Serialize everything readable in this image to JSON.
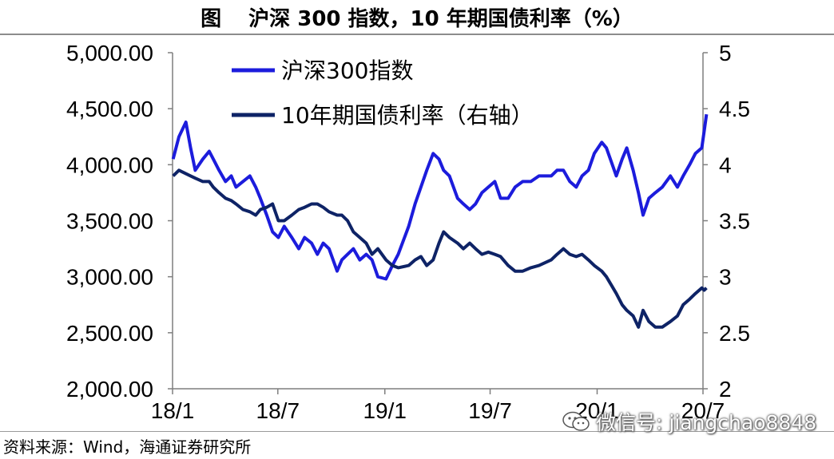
{
  "title": {
    "label": "图",
    "text": "沪深 300 指数，10 年期国债利率（%）"
  },
  "source": "资料来源：Wind，海通证券研究所",
  "watermark": {
    "icon": "wechat-icon",
    "text": "微信号: jiangchao8848"
  },
  "chart_data": {
    "type": "line",
    "x_ticks": [
      "18/1",
      "18/7",
      "19/1",
      "19/7",
      "20/1",
      "20/7"
    ],
    "xlim": [
      "18/1",
      "20/7"
    ],
    "y_left": {
      "ylim": [
        2000,
        5000
      ],
      "ticks": [
        "5,000.00",
        "4,500.00",
        "4,000.00",
        "3,500.00",
        "3,000.00",
        "2,500.00",
        "2,000.00"
      ]
    },
    "y_right": {
      "ylim": [
        2,
        5
      ],
      "ticks": [
        "5",
        "4.5",
        "4",
        "3.5",
        "3",
        "2.5",
        "2"
      ]
    },
    "legend": {
      "placement": "top-left"
    },
    "grid": false,
    "series": [
      {
        "name": "沪深300指数",
        "axis": "left",
        "color": "#1c1cdc",
        "x": [
          "18/01/02",
          "18/01/12",
          "18/01/24",
          "18/02/01",
          "18/02/09",
          "18/02/22",
          "18/03/05",
          "18/03/12",
          "18/03/22",
          "18/04/02",
          "18/04/12",
          "18/04/20",
          "18/05/02",
          "18/05/14",
          "18/05/24",
          "18/06/01",
          "18/06/12",
          "18/06/22",
          "18/07/02",
          "18/07/12",
          "18/07/25",
          "18/08/06",
          "18/08/16",
          "18/08/28",
          "18/09/07",
          "18/09/17",
          "18/09/27",
          "18/10/11",
          "18/10/19",
          "18/10/29",
          "18/11/08",
          "18/11/19",
          "18/11/30",
          "18/12/10",
          "18/12/20",
          "19/01/03",
          "19/01/14",
          "19/01/24",
          "19/02/11",
          "19/02/22",
          "19/03/04",
          "19/03/14",
          "19/03/25",
          "19/04/04",
          "19/04/12",
          "19/04/22",
          "19/05/06",
          "19/05/16",
          "19/05/27",
          "19/06/06",
          "19/06/17",
          "19/06/28",
          "19/07/09",
          "19/07/19",
          "19/08/01",
          "19/08/13",
          "19/08/26",
          "19/09/09",
          "19/09/23",
          "19/10/14",
          "19/10/24",
          "19/11/04",
          "19/11/15",
          "19/11/26",
          "19/12/06",
          "19/12/17",
          "19/12/27",
          "20/01/09",
          "20/01/17",
          "20/02/03",
          "20/02/13",
          "20/02/21",
          "20/03/03",
          "20/03/12",
          "20/03/20",
          "20/03/30",
          "20/04/10",
          "20/04/22",
          "20/05/06",
          "20/05/18",
          "20/05/28",
          "20/06/08",
          "20/06/18",
          "20/06/29",
          "20/07/03",
          "20/07/07"
        ],
        "values": [
          4050,
          4250,
          4380,
          4150,
          3950,
          4050,
          4120,
          4050,
          3950,
          3850,
          3900,
          3800,
          3850,
          3900,
          3800,
          3700,
          3550,
          3400,
          3350,
          3450,
          3350,
          3250,
          3350,
          3300,
          3200,
          3300,
          3250,
          3050,
          3150,
          3200,
          3250,
          3150,
          3200,
          3150,
          3000,
          2980,
          3100,
          3200,
          3450,
          3650,
          3800,
          3950,
          4100,
          4050,
          3950,
          3900,
          3700,
          3650,
          3600,
          3650,
          3750,
          3800,
          3850,
          3700,
          3700,
          3800,
          3850,
          3850,
          3900,
          3900,
          3950,
          3950,
          3850,
          3800,
          3900,
          3950,
          4100,
          4200,
          4150,
          3900,
          4050,
          4150,
          3950,
          3750,
          3550,
          3700,
          3750,
          3800,
          3900,
          3800,
          3900,
          4000,
          4100,
          4150,
          4300,
          4450
        ]
      },
      {
        "name": "10年期国债利率（右轴）",
        "axis": "right",
        "color": "#0e2366",
        "x": [
          "18/01/02",
          "18/01/12",
          "18/01/24",
          "18/02/01",
          "18/02/09",
          "18/02/22",
          "18/03/05",
          "18/03/12",
          "18/03/22",
          "18/04/02",
          "18/04/12",
          "18/04/20",
          "18/05/02",
          "18/05/14",
          "18/05/24",
          "18/06/01",
          "18/06/12",
          "18/06/22",
          "18/07/02",
          "18/07/12",
          "18/07/25",
          "18/08/06",
          "18/08/16",
          "18/08/28",
          "18/09/07",
          "18/09/17",
          "18/09/27",
          "18/10/11",
          "18/10/19",
          "18/10/29",
          "18/11/08",
          "18/11/19",
          "18/11/30",
          "18/12/10",
          "18/12/20",
          "19/01/03",
          "19/01/14",
          "19/01/24",
          "19/02/11",
          "19/02/22",
          "19/03/04",
          "19/03/14",
          "19/03/25",
          "19/04/04",
          "19/04/12",
          "19/04/22",
          "19/05/06",
          "19/05/16",
          "19/05/27",
          "19/06/06",
          "19/06/17",
          "19/06/28",
          "19/07/09",
          "19/07/19",
          "19/08/01",
          "19/08/13",
          "19/08/26",
          "19/09/09",
          "19/09/23",
          "19/10/14",
          "19/10/24",
          "19/11/04",
          "19/11/15",
          "19/11/26",
          "19/12/06",
          "19/12/17",
          "19/12/27",
          "20/01/09",
          "20/01/17",
          "20/02/03",
          "20/02/13",
          "20/02/21",
          "20/03/03",
          "20/03/12",
          "20/03/20",
          "20/03/30",
          "20/04/10",
          "20/04/22",
          "20/05/06",
          "20/05/18",
          "20/05/28",
          "20/06/08",
          "20/06/18",
          "20/06/29",
          "20/07/03",
          "20/07/07"
        ],
        "values": [
          3.9,
          3.95,
          3.92,
          3.9,
          3.88,
          3.85,
          3.85,
          3.8,
          3.75,
          3.7,
          3.68,
          3.65,
          3.6,
          3.58,
          3.55,
          3.6,
          3.62,
          3.65,
          3.5,
          3.5,
          3.55,
          3.6,
          3.62,
          3.65,
          3.65,
          3.62,
          3.58,
          3.55,
          3.55,
          3.5,
          3.4,
          3.35,
          3.3,
          3.2,
          3.25,
          3.15,
          3.1,
          3.08,
          3.1,
          3.15,
          3.18,
          3.1,
          3.15,
          3.3,
          3.4,
          3.35,
          3.3,
          3.25,
          3.3,
          3.25,
          3.2,
          3.22,
          3.2,
          3.18,
          3.1,
          3.05,
          3.05,
          3.08,
          3.1,
          3.15,
          3.2,
          3.25,
          3.2,
          3.18,
          3.2,
          3.15,
          3.1,
          3.05,
          3.0,
          2.85,
          2.75,
          2.7,
          2.65,
          2.55,
          2.7,
          2.6,
          2.55,
          2.55,
          2.6,
          2.65,
          2.75,
          2.8,
          2.85,
          2.9,
          2.88,
          2.9
        ]
      }
    ]
  }
}
